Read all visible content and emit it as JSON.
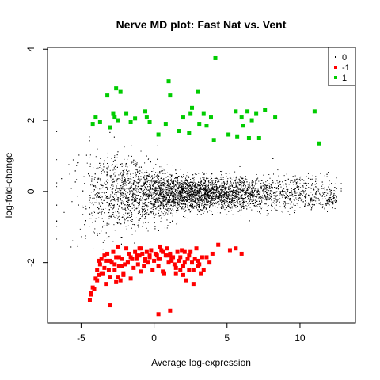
{
  "chart_data": {
    "type": "scatter",
    "title": "Nerve MD plot: Fast Nat vs. Vent",
    "xlabel": "Average log-expression",
    "ylabel": "log-fold-change",
    "xlim": [
      -7.3,
      13.8
    ],
    "ylim": [
      -3.7,
      4.05
    ],
    "x_ticks": [
      -5,
      0,
      5,
      10
    ],
    "y_ticks": [
      -2,
      0,
      2,
      4
    ],
    "grid": false,
    "legend_position": "top-right",
    "series": [
      {
        "name": "0",
        "color": "#000000",
        "marker": "dot",
        "note_points": "dense cloud of several thousand non-significant genes centred near log-fold-change 0",
        "x": [],
        "y": []
      },
      {
        "name": "-1",
        "color": "#ff0000",
        "marker": "square",
        "x": [
          -4.4,
          -4.3,
          -4.1,
          -4.0,
          -3.9,
          -3.8,
          -3.7,
          -3.6,
          -3.5,
          -3.4,
          -3.3,
          -3.2,
          -3.1,
          -3.0,
          -2.9,
          -2.8,
          -2.7,
          -2.6,
          -2.5,
          -2.4,
          -2.3,
          -2.2,
          -2.1,
          -2.0,
          -1.9,
          -1.8,
          -1.7,
          -1.6,
          -1.5,
          -1.4,
          -1.3,
          -1.2,
          -1.1,
          -1.0,
          -0.9,
          -0.8,
          -0.7,
          -0.6,
          -0.5,
          -0.4,
          -0.3,
          -0.2,
          -0.1,
          0.0,
          0.1,
          0.2,
          0.3,
          0.4,
          0.5,
          0.6,
          0.7,
          0.8,
          0.9,
          1.0,
          1.1,
          1.2,
          1.3,
          1.4,
          1.5,
          1.6,
          1.7,
          1.8,
          1.9,
          2.0,
          2.1,
          2.2,
          2.3,
          2.4,
          2.5,
          2.6,
          2.7,
          2.8,
          2.9,
          3.0,
          3.2,
          3.4,
          3.6,
          3.8,
          4.0,
          4.4,
          5.2,
          5.6,
          6.0,
          -4.2,
          -3.9,
          -3.6,
          -3.3,
          -3.0,
          -2.7,
          -2.4,
          -2.1,
          -1.8,
          -1.5,
          -1.2,
          -0.9,
          -0.6,
          -0.3,
          0.3,
          0.6,
          0.9,
          1.2,
          1.5,
          1.8,
          2.1,
          2.4,
          2.7,
          3.0,
          3.3,
          -4.3,
          -3.8,
          -3.4,
          -2.6,
          -2.2,
          -1.6,
          -1.0,
          0.4,
          1.1,
          2.0,
          3.1,
          -3.0,
          -2.5,
          0.3,
          1.1
        ],
        "y": [
          -3.05,
          -2.85,
          -2.75,
          -2.45,
          -2.2,
          -1.95,
          -2.05,
          -1.9,
          -2.3,
          -1.8,
          -2.6,
          -1.75,
          -2.2,
          -1.95,
          -2.0,
          -1.7,
          -2.2,
          -1.85,
          -2.4,
          -2.1,
          -2.5,
          -1.9,
          -2.3,
          -2.05,
          -1.6,
          -2.0,
          -1.75,
          -1.85,
          -1.9,
          -2.15,
          -1.7,
          -1.9,
          -2.05,
          -1.8,
          -1.6,
          -1.75,
          -2.1,
          -1.9,
          -1.7,
          -2.0,
          -1.85,
          -1.65,
          -2.2,
          -1.95,
          -1.75,
          -1.8,
          -2.1,
          -1.9,
          -1.65,
          -1.7,
          -2.3,
          -1.8,
          -1.6,
          -2.0,
          -1.75,
          -1.9,
          -1.85,
          -2.05,
          -2.3,
          -1.7,
          -1.95,
          -2.2,
          -1.65,
          -2.1,
          -1.7,
          -2.5,
          -1.9,
          -2.2,
          -1.7,
          -2.0,
          -2.6,
          -1.9,
          -1.6,
          -2.1,
          -2.3,
          -2.2,
          -1.85,
          -2.0,
          -1.75,
          -1.5,
          -1.65,
          -1.6,
          -1.75,
          -2.7,
          -2.5,
          -2.3,
          -1.95,
          -2.4,
          -2.05,
          -1.85,
          -2.35,
          -2.0,
          -1.9,
          -1.8,
          -2.25,
          -1.95,
          -1.8,
          -1.9,
          -2.25,
          -1.8,
          -1.95,
          -2.15,
          -1.85,
          -2.0,
          -1.8,
          -2.2,
          -1.95,
          -1.85,
          -2.9,
          -2.35,
          -2.15,
          -2.55,
          -2.1,
          -2.45,
          -1.6,
          -1.55,
          -1.8,
          -2.35,
          -2.05,
          -3.2,
          -1.55,
          -3.45,
          -3.35
        ]
      },
      {
        "name": "1",
        "color": "#00cc00",
        "marker": "square",
        "x": [
          -4.2,
          -4.0,
          -3.7,
          -3.2,
          -3.0,
          -2.8,
          -2.7,
          -2.6,
          -2.5,
          -2.3,
          -1.9,
          -1.6,
          -1.3,
          -0.6,
          -0.5,
          -0.3,
          0.3,
          0.8,
          1.0,
          1.1,
          1.7,
          2.0,
          2.4,
          2.6,
          3.0,
          3.1,
          3.4,
          3.6,
          3.9,
          4.2,
          5.1,
          5.6,
          5.7,
          6.0,
          6.1,
          6.4,
          6.5,
          6.7,
          7.0,
          7.2,
          7.6,
          8.3,
          11.0,
          11.3,
          4.1,
          2.5
        ],
        "y": [
          1.9,
          2.1,
          1.95,
          2.7,
          1.8,
          2.2,
          2.1,
          2.9,
          2.0,
          2.8,
          2.2,
          1.95,
          2.05,
          2.25,
          2.1,
          1.95,
          1.6,
          1.9,
          3.1,
          2.7,
          1.7,
          2.1,
          1.65,
          2.35,
          2.8,
          1.9,
          2.2,
          1.85,
          2.1,
          3.75,
          1.6,
          2.25,
          1.55,
          2.1,
          1.85,
          2.25,
          1.5,
          2.0,
          2.2,
          1.5,
          2.3,
          2.1,
          2.25,
          1.35,
          1.45,
          2.2
        ]
      }
    ]
  }
}
